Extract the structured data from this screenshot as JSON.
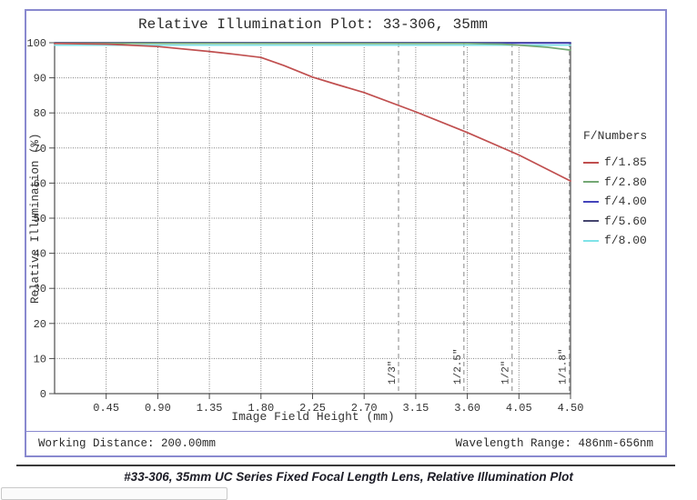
{
  "chart": {
    "title": "Relative Illumination Plot: 33-306, 35mm",
    "xlabel": "Image Field Height (mm)",
    "ylabel": "Relative Illumination (%)",
    "legend_title": "F/Numbers",
    "footer_left": "Working Distance: 200.00mm",
    "footer_right": "Wavelength Range: 486nm-656nm"
  },
  "caption": "#33-306, 35mm UC Series Fixed Focal Length Lens, Relative Illumination Plot",
  "colors": {
    "frame_border": "#8989cf",
    "axis": "#4d4d4d",
    "grid": "#7d7d7d",
    "sensor_line": "#9a9a9a",
    "dark_rule": "#3a3a3a"
  },
  "chart_data": {
    "type": "line",
    "title": "Relative Illumination Plot: 33-306, 35mm",
    "xlabel": "Image Field Height (mm)",
    "ylabel": "Relative Illumination (%)",
    "xlim": [
      0,
      4.5
    ],
    "ylim": [
      0,
      100
    ],
    "grid": true,
    "legend_position": "right",
    "legend_title": "F/Numbers",
    "xticks": [
      {
        "v": 0.45,
        "label": "0.45"
      },
      {
        "v": 0.9,
        "label": "0.90"
      },
      {
        "v": 1.35,
        "label": "1.35"
      },
      {
        "v": 1.8,
        "label": "1.80"
      },
      {
        "v": 2.25,
        "label": "2.25"
      },
      {
        "v": 2.7,
        "label": "2.70"
      },
      {
        "v": 3.15,
        "label": "3.15"
      },
      {
        "v": 3.6,
        "label": "3.60"
      },
      {
        "v": 4.05,
        "label": "4.05"
      },
      {
        "v": 4.5,
        "label": "4.50"
      }
    ],
    "yticks": [
      {
        "v": 0,
        "label": "0"
      },
      {
        "v": 10,
        "label": "10"
      },
      {
        "v": 20,
        "label": "20"
      },
      {
        "v": 30,
        "label": "30"
      },
      {
        "v": 40,
        "label": "40"
      },
      {
        "v": 50,
        "label": "50"
      },
      {
        "v": 60,
        "label": "60"
      },
      {
        "v": 70,
        "label": "70"
      },
      {
        "v": 80,
        "label": "80"
      },
      {
        "v": 90,
        "label": "90"
      },
      {
        "v": 100,
        "label": "100"
      }
    ],
    "series": [
      {
        "name": "f/1.85",
        "color": "#c04f4f",
        "points": [
          [
            0,
            99.8
          ],
          [
            0.45,
            99.6
          ],
          [
            0.9,
            98.9
          ],
          [
            1.35,
            97.5
          ],
          [
            1.57,
            96.7
          ],
          [
            1.8,
            95.8
          ],
          [
            2.0,
            93.5
          ],
          [
            2.25,
            90.2
          ],
          [
            2.45,
            88.2
          ],
          [
            2.7,
            85.8
          ],
          [
            3.15,
            80.3
          ],
          [
            3.6,
            74.4
          ],
          [
            4.05,
            68.0
          ],
          [
            4.5,
            60.6
          ]
        ]
      },
      {
        "name": "f/2.80",
        "color": "#74a874",
        "points": [
          [
            0,
            99.85
          ],
          [
            3.6,
            99.8
          ],
          [
            3.9,
            99.6
          ],
          [
            4.1,
            99.2
          ],
          [
            4.3,
            98.7
          ],
          [
            4.5,
            97.9
          ]
        ]
      },
      {
        "name": "f/4.00",
        "color": "#4444bb",
        "points": [
          [
            0,
            99.9
          ],
          [
            4.5,
            99.9
          ]
        ]
      },
      {
        "name": "f/5.60",
        "color": "#45456e",
        "points": [
          [
            0,
            100
          ],
          [
            4.5,
            100
          ]
        ]
      },
      {
        "name": "f/8.00",
        "color": "#7fe3e8",
        "points": [
          [
            0,
            99.3
          ],
          [
            4.5,
            99.3
          ]
        ]
      }
    ],
    "sensor_format_lines": [
      {
        "label": "1/3\"",
        "x": 3.0
      },
      {
        "label": "1/2.5\"",
        "x": 3.57
      },
      {
        "label": "1/2\"",
        "x": 3.99
      },
      {
        "label": "1/1.8\"",
        "x": 4.49
      }
    ]
  }
}
